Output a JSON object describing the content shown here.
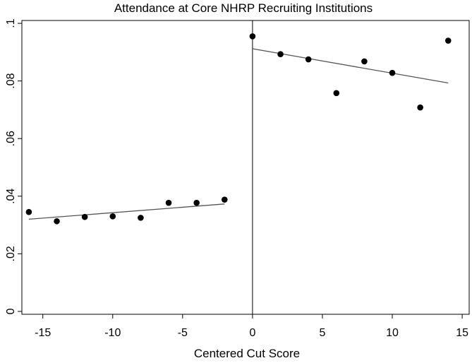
{
  "chart_data": {
    "type": "scatter",
    "title": "Attendance at Core NHRP Recruiting Institutions",
    "xlabel": "Centered Cut Score",
    "ylabel": "",
    "xlim": [
      -16.5,
      15.5
    ],
    "ylim": [
      -0.001,
      0.101
    ],
    "xticks": [
      -15,
      -10,
      -5,
      0,
      5,
      10,
      15
    ],
    "xtick_labels": [
      "-15",
      "-10",
      "-5",
      "0",
      "5",
      "10",
      "15"
    ],
    "yticks": [
      0,
      0.02,
      0.04,
      0.06,
      0.08,
      0.1
    ],
    "ytick_labels": [
      "0",
      ".02",
      ".04",
      ".06",
      ".08",
      ".1"
    ],
    "grid": false,
    "cutoff_x": 0,
    "points": [
      {
        "x": -16,
        "y": 0.0345
      },
      {
        "x": -14,
        "y": 0.0313
      },
      {
        "x": -12,
        "y": 0.0328
      },
      {
        "x": -10,
        "y": 0.033
      },
      {
        "x": -8,
        "y": 0.0325
      },
      {
        "x": -6,
        "y": 0.0377
      },
      {
        "x": -4,
        "y": 0.0377
      },
      {
        "x": -2,
        "y": 0.0388
      },
      {
        "x": 0,
        "y": 0.0955
      },
      {
        "x": 2,
        "y": 0.0893
      },
      {
        "x": 4,
        "y": 0.0875
      },
      {
        "x": 6,
        "y": 0.0758
      },
      {
        "x": 8,
        "y": 0.0868
      },
      {
        "x": 10,
        "y": 0.0828
      },
      {
        "x": 12,
        "y": 0.0708
      },
      {
        "x": 14,
        "y": 0.094
      }
    ],
    "fit_lines": [
      {
        "x": [
          -16,
          -2
        ],
        "y": [
          0.032,
          0.0373
        ]
      },
      {
        "x": [
          0,
          14
        ],
        "y": [
          0.0912,
          0.0793
        ]
      }
    ]
  }
}
